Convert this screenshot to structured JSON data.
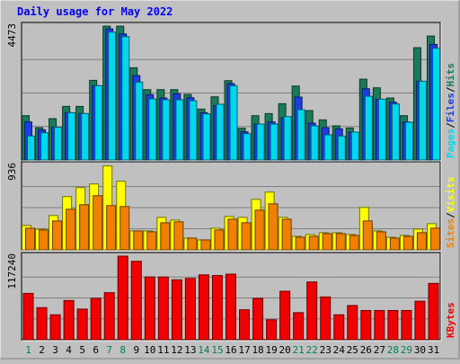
{
  "chart_data": {
    "type": "bar",
    "title": "Daily usage for May 2022",
    "categories": [
      "1",
      "2",
      "3",
      "4",
      "5",
      "6",
      "7",
      "8",
      "9",
      "10",
      "11",
      "12",
      "13",
      "14",
      "15",
      "16",
      "17",
      "18",
      "19",
      "20",
      "21",
      "22",
      "23",
      "24",
      "25",
      "26",
      "27",
      "28",
      "29",
      "30",
      "31"
    ],
    "weekend_days": [
      "1",
      "7",
      "8",
      "14",
      "15",
      "21",
      "22",
      "28",
      "29"
    ],
    "panels": [
      {
        "name": "top",
        "ymax": 4473,
        "ymax_label": "4473",
        "side_labels": [
          "Pages",
          "/",
          "Files",
          "/",
          "Hits"
        ],
        "series": [
          {
            "name": "Hits",
            "color": "#1a7a5a",
            "values": [
              1480,
              1080,
              1380,
              1790,
              1790,
              2660,
              4470,
              4470,
              3080,
              2350,
              2350,
              2350,
              2190,
              1700,
              2110,
              2650,
              1060,
              1480,
              1550,
              1880,
              2470,
              1650,
              1340,
              1140,
              1070,
              2700,
              2410,
              2070,
              1480,
              3750,
              4140
            ]
          },
          {
            "name": "Files",
            "color": "#1c3ee0",
            "values": [
              1270,
              1010,
              1090,
              1580,
              1550,
              2480,
              4380,
              4210,
              2820,
              2180,
              2070,
              2210,
              2080,
              1580,
              1820,
              2550,
              940,
              1200,
              1270,
              1420,
              2100,
              1230,
              1080,
              1040,
              930,
              2380,
              2030,
              1930,
              1270,
              2630,
              3860
            ]
          },
          {
            "name": "Pages",
            "color": "#00d8f0",
            "values": [
              800,
              910,
              1090,
              1580,
              1550,
              2480,
              4270,
              4120,
              2600,
              2040,
              2010,
              2010,
              1980,
              1540,
              1860,
              2480,
              880,
              1200,
              1200,
              1450,
              1680,
              1140,
              840,
              800,
              930,
              2130,
              2030,
              1870,
              1260,
              2630,
              3730
            ]
          }
        ]
      },
      {
        "name": "middle",
        "ymax": 936,
        "ymax_label": "936",
        "side_labels": [
          "Sites",
          "/",
          "Visits"
        ],
        "series": [
          {
            "name": "Visits",
            "color": "#ffff00",
            "values": [
              270,
              230,
              380,
              590,
              690,
              730,
              930,
              760,
              210,
              210,
              360,
              330,
              130,
              110,
              240,
              370,
              360,
              560,
              640,
              360,
              150,
              170,
              190,
              190,
              170,
              470,
              210,
              140,
              160,
              230,
              290
            ]
          },
          {
            "name": "Sites",
            "color": "#f08000",
            "values": [
              240,
              220,
              320,
              450,
              500,
              600,
              490,
              480,
              210,
              200,
              300,
              310,
              130,
              110,
              220,
              340,
              300,
              440,
              510,
              340,
              140,
              150,
              180,
              180,
              160,
              320,
              200,
              130,
              150,
              190,
              240
            ]
          }
        ]
      },
      {
        "name": "bottom",
        "ymax": 117240,
        "ymax_label": "117240",
        "side_labels": [
          "KBytes"
        ],
        "series": [
          {
            "name": "KBytes",
            "color": "#f00000",
            "values": [
              65000,
              45000,
              35000,
              55000,
              43000,
              58000,
              66000,
              117240,
              110000,
              88000,
              88000,
              84000,
              86000,
              91000,
              90000,
              92000,
              42000,
              58000,
              28000,
              68000,
              38000,
              81000,
              60000,
              35000,
              48000,
              41000,
              41000,
              41000,
              41000,
              54000,
              79000
            ]
          }
        ]
      }
    ]
  }
}
